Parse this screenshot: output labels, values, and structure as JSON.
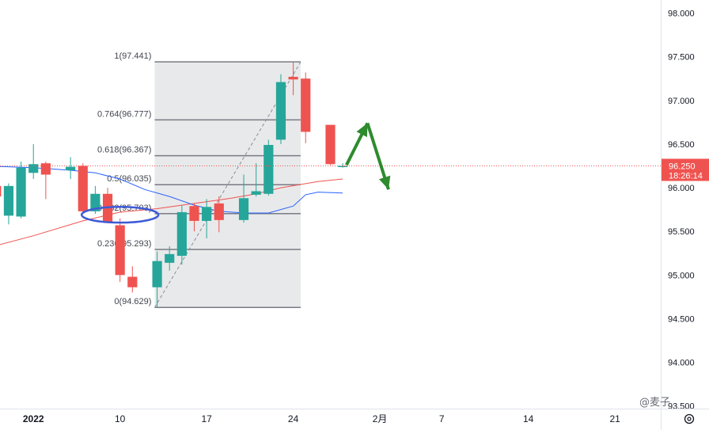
{
  "chart_data": {
    "type": "candlestick",
    "y_ticks": [
      "98.000",
      "97.500",
      "97.000",
      "96.500",
      "96.000",
      "95.500",
      "95.000",
      "94.500",
      "94.000",
      "93.500"
    ],
    "ylim": [
      93.47,
      98.15
    ],
    "x_ticks": [
      {
        "label": "2022",
        "x": 3
      },
      {
        "label": "10",
        "x": 10
      },
      {
        "label": "17",
        "x": 17
      },
      {
        "label": "24",
        "x": 24
      },
      {
        "label": "2月",
        "x": 31
      },
      {
        "label": "7",
        "x": 36
      },
      {
        "label": "14",
        "x": 43
      },
      {
        "label": "21",
        "x": 50
      }
    ],
    "xlim": [
      0.3,
      53.7
    ],
    "candles": [
      {
        "x": 0,
        "o": 96.02,
        "h": 96.25,
        "l": 95.88,
        "c": 95.9
      },
      {
        "x": 1,
        "o": 95.68,
        "h": 96.05,
        "l": 95.58,
        "c": 96.02
      },
      {
        "x": 2,
        "o": 95.67,
        "h": 96.3,
        "l": 95.65,
        "c": 96.23
      },
      {
        "x": 3,
        "o": 96.17,
        "h": 96.5,
        "l": 96.1,
        "c": 96.27
      },
      {
        "x": 4,
        "o": 96.28,
        "h": 96.3,
        "l": 95.87,
        "c": 96.15
      },
      {
        "x": 6,
        "o": 96.2,
        "h": 96.35,
        "l": 96.1,
        "c": 96.24
      },
      {
        "x": 7,
        "o": 96.25,
        "h": 96.28,
        "l": 95.72,
        "c": 95.73
      },
      {
        "x": 8,
        "o": 95.73,
        "h": 96.02,
        "l": 95.7,
        "c": 95.93
      },
      {
        "x": 9,
        "o": 95.93,
        "h": 96.0,
        "l": 95.6,
        "c": 95.61
      },
      {
        "x": 10,
        "o": 95.57,
        "h": 95.65,
        "l": 94.92,
        "c": 95.0
      },
      {
        "x": 11,
        "o": 94.98,
        "h": 95.1,
        "l": 94.8,
        "c": 94.86
      },
      {
        "x": 13,
        "o": 94.86,
        "h": 95.27,
        "l": 94.63,
        "c": 95.16
      },
      {
        "x": 14,
        "o": 95.14,
        "h": 95.33,
        "l": 95.05,
        "c": 95.24
      },
      {
        "x": 15,
        "o": 95.22,
        "h": 95.8,
        "l": 95.12,
        "c": 95.72
      },
      {
        "x": 16,
        "o": 95.79,
        "h": 95.82,
        "l": 95.5,
        "c": 95.62
      },
      {
        "x": 17,
        "o": 95.62,
        "h": 95.87,
        "l": 95.42,
        "c": 95.78
      },
      {
        "x": 18,
        "o": 95.82,
        "h": 95.9,
        "l": 95.49,
        "c": 95.63
      },
      {
        "x": 20,
        "o": 95.63,
        "h": 96.15,
        "l": 95.6,
        "c": 95.88
      },
      {
        "x": 21,
        "o": 95.92,
        "h": 96.28,
        "l": 95.9,
        "c": 95.96
      },
      {
        "x": 22,
        "o": 95.93,
        "h": 96.55,
        "l": 95.91,
        "c": 96.49
      },
      {
        "x": 23,
        "o": 96.55,
        "h": 97.3,
        "l": 96.5,
        "c": 97.21
      },
      {
        "x": 24,
        "o": 97.27,
        "h": 97.44,
        "l": 97.06,
        "c": 97.24
      },
      {
        "x": 25,
        "o": 97.25,
        "h": 97.32,
        "l": 96.51,
        "c": 96.64
      },
      {
        "x": 27,
        "o": 96.72,
        "h": 96.72,
        "l": 96.26,
        "c": 96.27
      },
      {
        "x": 28,
        "o": 96.25,
        "h": 96.28,
        "l": 96.23,
        "c": 96.25
      }
    ],
    "ma_red": [
      [
        -1,
        95.3
      ],
      [
        3,
        95.45
      ],
      [
        7,
        95.62
      ],
      [
        10,
        95.72
      ],
      [
        13,
        95.76
      ],
      [
        16,
        95.82
      ],
      [
        19,
        95.88
      ],
      [
        21,
        95.93
      ],
      [
        23,
        96.0
      ],
      [
        26,
        96.07
      ],
      [
        28,
        96.1
      ]
    ],
    "ma_blue": [
      [
        -1,
        96.25
      ],
      [
        3,
        96.23
      ],
      [
        6,
        96.2
      ],
      [
        8,
        96.17
      ],
      [
        10,
        96.1
      ],
      [
        12,
        95.98
      ],
      [
        14,
        95.9
      ],
      [
        16,
        95.8
      ],
      [
        18,
        95.73
      ],
      [
        20,
        95.71
      ],
      [
        22,
        95.71
      ],
      [
        24,
        95.79
      ],
      [
        25,
        95.92
      ],
      [
        26,
        95.95
      ],
      [
        28,
        95.94
      ]
    ],
    "last_price": "96.250",
    "countdown": "18:26:14",
    "fibonacci": {
      "x_start": 12.8,
      "x_end": 24.6,
      "levels": [
        {
          "label": "1(97.441)",
          "value": 97.441
        },
        {
          "label": "0.764(96.777)",
          "value": 96.777
        },
        {
          "label": "0.618(96.367)",
          "value": 96.367
        },
        {
          "label": "0.5(96.035)",
          "value": 96.035
        },
        {
          "label": "0.382(95.703)",
          "value": 95.703
        },
        {
          "label": "0.236(95.293)",
          "value": 95.293
        },
        {
          "label": "0(94.629)",
          "value": 94.629
        }
      ]
    },
    "arrow_path": [
      [
        28.3,
        96.26
      ],
      [
        30.0,
        96.74
      ],
      [
        31.7,
        95.98
      ]
    ],
    "ellipse": {
      "x_center": 10.0,
      "y_value": 95.69,
      "x_radius": 3.1,
      "y_radius": 0.09
    }
  },
  "colors": {
    "up": "#26a69a",
    "down": "#ef5350",
    "ma_red": "#ef5350",
    "ma_blue": "#2962ff",
    "ellipse": "#3d5bd6",
    "arrow": "#2e8b2e",
    "fib_line": "#787b86",
    "fib_fill": "#e6e7e8",
    "price_badge": "#ef5350",
    "grid_axis": "#e0e3eb"
  },
  "watermark": "@麦子",
  "settings_icon": "gear-icon"
}
